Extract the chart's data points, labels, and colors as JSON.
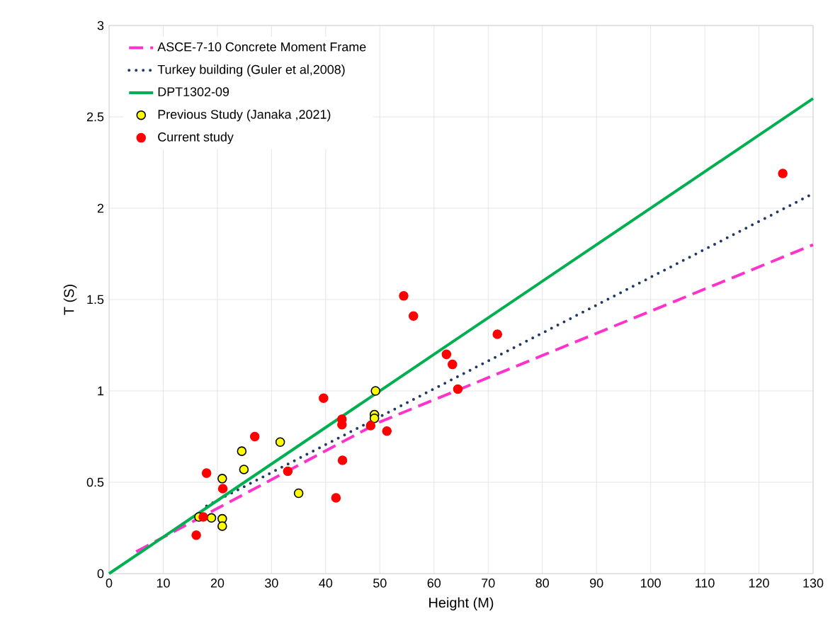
{
  "chart_data": {
    "type": "line",
    "xlabel": "Height (M)",
    "ylabel": "T (S)",
    "xlim": [
      0,
      130
    ],
    "ylim": [
      0,
      3
    ],
    "xticks": [
      0,
      10,
      20,
      30,
      40,
      50,
      60,
      70,
      80,
      90,
      100,
      110,
      120,
      130
    ],
    "yticks": [
      0,
      0.5,
      1,
      1.5,
      2,
      2.5,
      3
    ],
    "grid": true,
    "legend": "top left",
    "series": [
      {
        "name": "ASCE-7-10 Concrete Moment Frame",
        "line_style": "dashed",
        "color": "#ff33cc",
        "x": [
          5,
          50,
          130
        ],
        "values": [
          0.12,
          0.83,
          1.8
        ]
      },
      {
        "name": "Turkey building (Guler et al,2008)",
        "line_style": "dotted",
        "color": "#1f3864",
        "x": [
          18,
          130
        ],
        "values": [
          0.37,
          2.08
        ]
      },
      {
        "name": "DPT1302-09",
        "line_style": "solid",
        "color": "#00b050",
        "x": [
          0,
          63,
          130
        ],
        "values": [
          0,
          1.26,
          2.6
        ]
      },
      {
        "name": "Previous Study (Janaka ,2021)",
        "type": "scatter",
        "marker": "circle",
        "color": "#ffff00",
        "x": [
          49.2,
          49,
          49,
          31.6,
          24.5,
          24.9,
          20.9,
          35,
          16.6,
          18.9,
          20.9,
          20.9
        ],
        "values": [
          1.0,
          0.87,
          0.85,
          0.72,
          0.67,
          0.57,
          0.52,
          0.44,
          0.31,
          0.305,
          0.3,
          0.26
        ]
      },
      {
        "name": "Current study",
        "type": "scatter",
        "marker": "circle",
        "color": "#ff0000",
        "x": [
          39.6,
          43,
          43,
          48.3,
          26.9,
          18,
          33,
          21,
          43.1,
          41.9,
          17.4,
          16.1,
          54.4,
          56.2,
          62.3,
          63.4,
          64.4,
          71.7,
          51.3,
          124.4
        ],
        "values": [
          0.96,
          0.845,
          0.815,
          0.81,
          0.75,
          0.55,
          0.56,
          0.465,
          0.62,
          0.415,
          0.31,
          0.21,
          1.52,
          1.41,
          1.2,
          1.145,
          1.01,
          1.31,
          0.78,
          2.19
        ]
      }
    ]
  }
}
